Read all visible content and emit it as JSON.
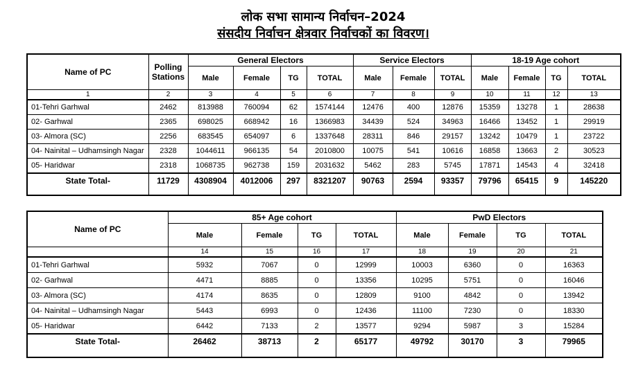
{
  "title": {
    "line1": "लोक सभा सामान्य निर्वाचन–2024",
    "line2": "संसदीय निर्वाचन क्षेत्रवार निर्वाचकों का विवरण।"
  },
  "table1": {
    "headers": {
      "name_of_pc": "Name of PC",
      "polling_stations": "Polling Stations",
      "general_electors": "General Electors",
      "service_electors": "Service Electors",
      "age_18_19": "18-19 Age cohort",
      "male": "Male",
      "female": "Female",
      "tg": "TG",
      "total": "TOTAL"
    },
    "column_numbers": [
      "1",
      "2",
      "3",
      "4",
      "5",
      "6",
      "7",
      "8",
      "9",
      "10",
      "11",
      "12",
      "13"
    ],
    "rows": [
      {
        "name": "01-Tehri Garhwal",
        "values": [
          "2462",
          "813988",
          "760094",
          "62",
          "1574144",
          "12476",
          "400",
          "12876",
          "15359",
          "13278",
          "1",
          "28638"
        ]
      },
      {
        "name": "02- Garhwal",
        "values": [
          "2365",
          "698025",
          "668942",
          "16",
          "1366983",
          "34439",
          "524",
          "34963",
          "16466",
          "13452",
          "1",
          "29919"
        ]
      },
      {
        "name": "03- Almora (SC)",
        "values": [
          "2256",
          "683545",
          "654097",
          "6",
          "1337648",
          "28311",
          "846",
          "29157",
          "13242",
          "10479",
          "1",
          "23722"
        ]
      },
      {
        "name": "04- Nainital – Udhamsingh Nagar",
        "values": [
          "2328",
          "1044611",
          "966135",
          "54",
          "2010800",
          "10075",
          "541",
          "10616",
          "16858",
          "13663",
          "2",
          "30523"
        ]
      },
      {
        "name": "05- Haridwar",
        "values": [
          "2318",
          "1068735",
          "962738",
          "159",
          "2031632",
          "5462",
          "283",
          "5745",
          "17871",
          "14543",
          "4",
          "32418"
        ]
      }
    ],
    "total_row": {
      "label": "State Total-",
      "values": [
        "11729",
        "4308904",
        "4012006",
        "297",
        "8321207",
        "90763",
        "2594",
        "93357",
        "79796",
        "65415",
        "9",
        "145220"
      ]
    }
  },
  "table2": {
    "headers": {
      "name_of_pc": "Name of PC",
      "age_85": "85+ Age cohort",
      "pwd_electors": "PwD Electors",
      "male": "Male",
      "female": "Female",
      "tg": "TG",
      "total": "TOTAL"
    },
    "column_numbers": [
      "",
      "14",
      "15",
      "16",
      "17",
      "18",
      "19",
      "20",
      "21"
    ],
    "rows": [
      {
        "name": "01-Tehri Garhwal",
        "values": [
          "5932",
          "7067",
          "0",
          "12999",
          "10003",
          "6360",
          "0",
          "16363"
        ]
      },
      {
        "name": "02- Garhwal",
        "values": [
          "4471",
          "8885",
          "0",
          "13356",
          "10295",
          "5751",
          "0",
          "16046"
        ]
      },
      {
        "name": "03- Almora (SC)",
        "values": [
          "4174",
          "8635",
          "0",
          "12809",
          "9100",
          "4842",
          "0",
          "13942"
        ]
      },
      {
        "name": "04- Nainital – Udhamsingh Nagar",
        "values": [
          "5443",
          "6993",
          "0",
          "12436",
          "11100",
          "7230",
          "0",
          "18330"
        ]
      },
      {
        "name": "05- Haridwar",
        "values": [
          "6442",
          "7133",
          "2",
          "13577",
          "9294",
          "5987",
          "3",
          "15284"
        ]
      }
    ],
    "total_row": {
      "label": "State Total-",
      "values": [
        "26462",
        "38713",
        "2",
        "65177",
        "49792",
        "30170",
        "3",
        "79965"
      ]
    }
  }
}
